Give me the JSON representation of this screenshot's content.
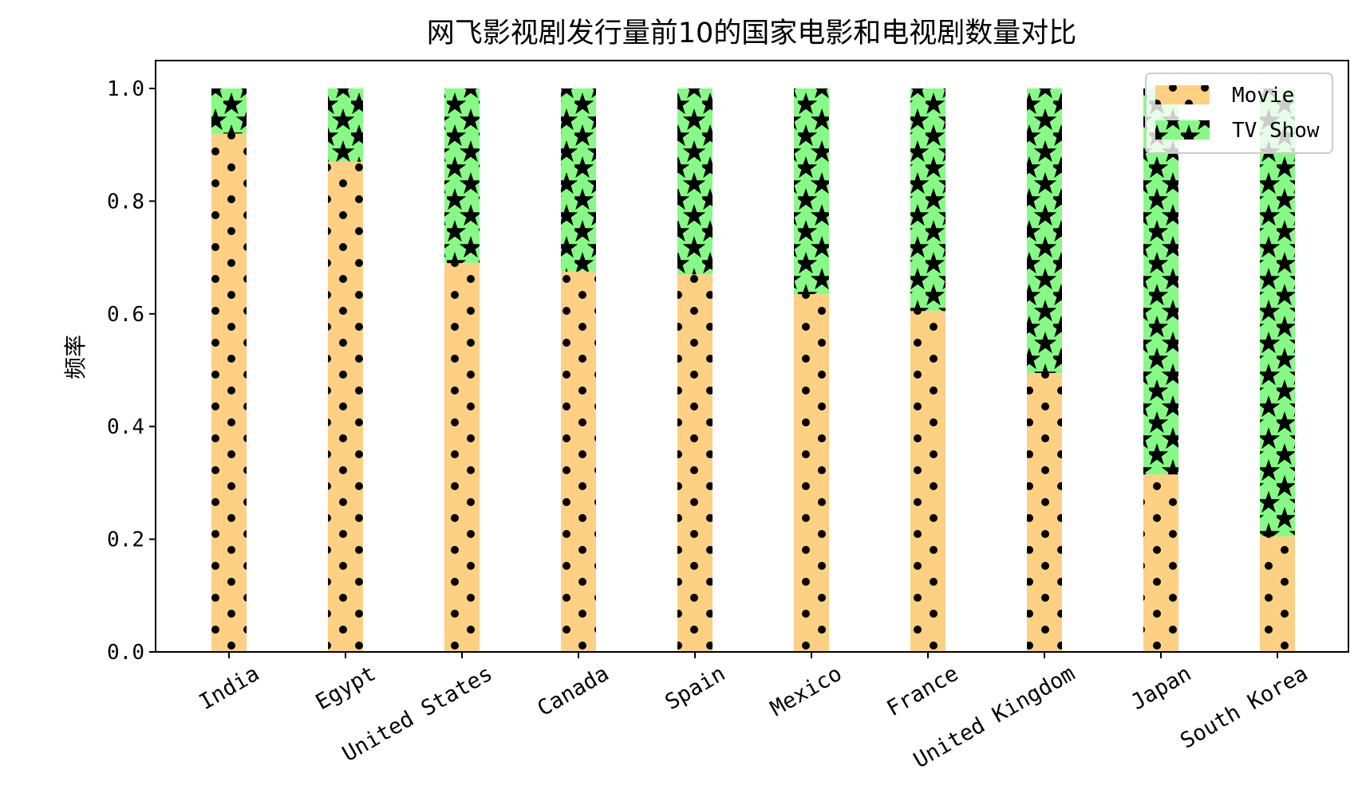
{
  "chart_data": {
    "type": "bar",
    "stacked": true,
    "title": "网飞影视剧发行量前10的国家电影和电视剧数量对比",
    "xlabel": "",
    "ylabel": "频率",
    "ylim": [
      0,
      1.0
    ],
    "yticks": [
      "0.0",
      "0.2",
      "0.4",
      "0.6",
      "0.8",
      "1.0"
    ],
    "grid": false,
    "legend_position": "top-right",
    "categories": [
      "India",
      "Egypt",
      "United States",
      "Canada",
      "Spain",
      "Mexico",
      "France",
      "United Kingdom",
      "Japan",
      "South Korea"
    ],
    "series": [
      {
        "name": "Movie",
        "color": "#fdd084",
        "pattern": "dots",
        "values": [
          0.92,
          0.87,
          0.69,
          0.675,
          0.67,
          0.635,
          0.605,
          0.495,
          0.315,
          0.205
        ]
      },
      {
        "name": "TV Show",
        "color": "#85fb85",
        "pattern": "stars",
        "values": [
          0.08,
          0.13,
          0.31,
          0.325,
          0.33,
          0.365,
          0.395,
          0.505,
          0.685,
          0.795
        ]
      }
    ]
  }
}
